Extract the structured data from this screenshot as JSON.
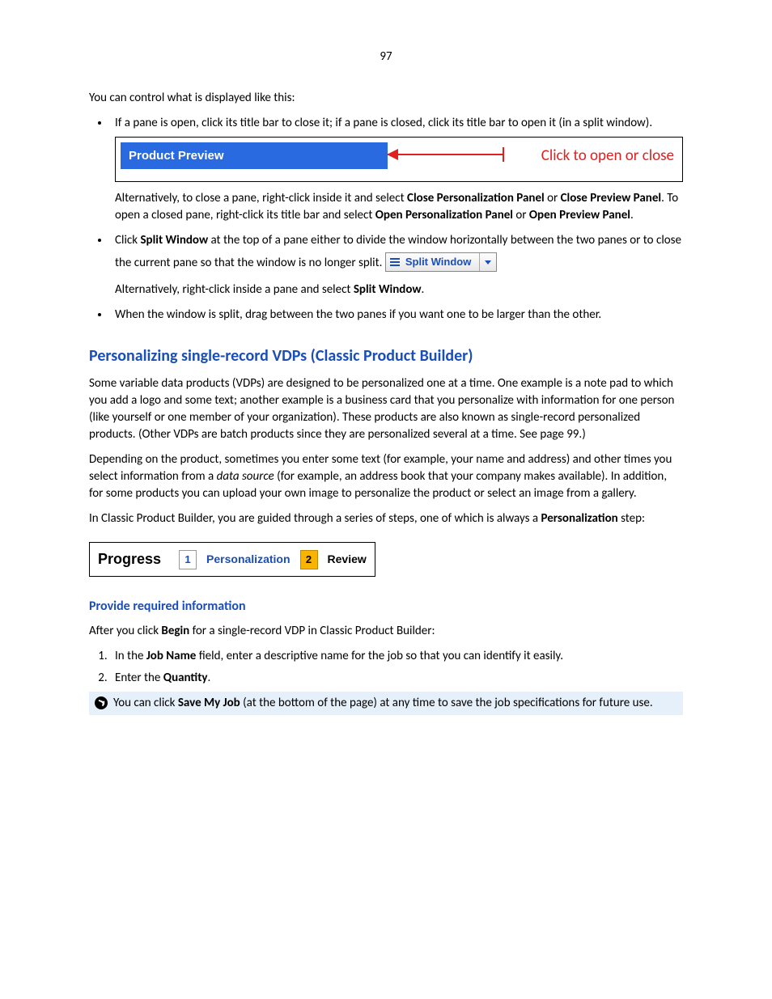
{
  "page_number": "97",
  "intro": "You can control what is displayed like this:",
  "bullets": {
    "b1": "If a pane is open, click its title bar to close it; if a pane is closed, click its title bar to open it (in a split window).",
    "preview_bar_label": "Product Preview",
    "arrow_label": "Click to open or close",
    "alt1_pre": "Alternatively, to close a pane, right-click inside it and select ",
    "alt1_bold1": "Close Personalization Panel",
    "alt1_or": " or ",
    "alt1_bold2": "Close Preview Panel",
    "alt1_mid": ". To open a closed pane, right-click its title bar and select ",
    "alt1_bold3": "Open Personalization Panel",
    "alt1_or2": " or ",
    "alt1_bold4": "Open Preview Panel",
    "alt1_end": ".",
    "b2_pre": "Click ",
    "b2_bold": "Split Window",
    "b2_post": " at the top of a pane either to divide the window horizontally between the two panes or to close the current pane so that the window is no longer split.",
    "split_btn_label": "Split Window",
    "alt2_pre": "Alternatively, right-click inside a pane and select ",
    "alt2_bold": "Split Window",
    "alt2_end": ".",
    "b3": "When the window is split, drag between the two panes if you want one to be larger than the other."
  },
  "heading": "Personalizing single-record VDPs (Classic Product Builder)",
  "para1": "Some variable data products (VDPs) are designed to be personalized one at a time. One example is a note pad to which you add a logo and some text; another example is a business card that you personalize with information for one person (like yourself or one member of your organization). These products are also known as single-record personalized products. (Other VDPs are batch products since they are personalized several at a time. See page 99.)",
  "para2_pre": "Depending on the product, sometimes you enter some text (for example, your name and address) and other times you select information from a ",
  "para2_italic": "data source",
  "para2_post": " (for example, an address book that your company makes available). In addition, for some products you can upload your own image to personalize the product or select an image from a gallery.",
  "para3_pre": "In Classic Product Builder, you are guided through a series of steps, one of which is always a ",
  "para3_bold": "Personalization",
  "para3_post": " step:",
  "progress": {
    "label": "Progress",
    "step1_num": "1",
    "step1_label": "Personalization",
    "step2_num": "2",
    "step2_label": "Review"
  },
  "subheading": "Provide required information",
  "after_begin_pre": "After you click ",
  "after_begin_bold": "Begin",
  "after_begin_post": " for a single-record VDP in Classic Product Builder:",
  "step1_pre": "In the ",
  "step1_bold": "Job Name",
  "step1_post": " field, enter a descriptive name for the job so that you can identify it easily.",
  "step2_pre": "Enter the ",
  "step2_bold": "Quantity",
  "step2_post": ".",
  "tip_pre": "You can click ",
  "tip_bold": "Save My Job",
  "tip_post": " (at the bottom of the page) at any time to save the job specifications for future use.",
  "colors": {
    "link_blue": "#1a4eb8",
    "bar_blue": "#2a6ae0",
    "arrow_red": "#e02020",
    "step_active_bg": "#f8b400",
    "tip_bg": "#e6f0fa"
  }
}
